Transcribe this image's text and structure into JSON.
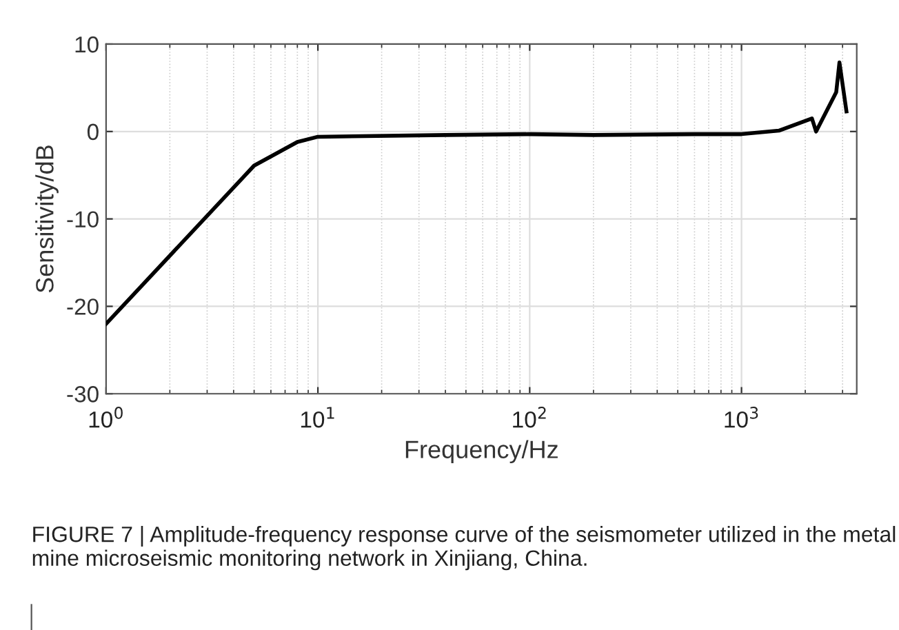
{
  "chart_data": {
    "type": "line",
    "xlabel": "Frequency/Hz",
    "ylabel": "Sensitivity/dB",
    "x": [
      1,
      5,
      8,
      10,
      40,
      100,
      200,
      600,
      1000,
      1500,
      2150,
      2250,
      2800,
      2900,
      3130
    ],
    "series": [
      {
        "color": "#000000",
        "values": [
          -22.0,
          -3.9,
          -1.2,
          -0.6,
          -0.4,
          -0.3,
          -0.4,
          -0.3,
          -0.3,
          0.1,
          1.5,
          0.0,
          4.5,
          7.9,
          2.3
        ]
      }
    ],
    "log": "x",
    "xlim": [
      1,
      3500
    ],
    "xticks": [
      {
        "value": 1,
        "label": "10$^{0}$"
      },
      {
        "value": 10,
        "label": "10$^{1}$"
      },
      {
        "value": 100,
        "label": "10$^{2}$"
      },
      {
        "value": 1000,
        "label": "10$^{3}$"
      }
    ],
    "ylim": [
      -30,
      10
    ],
    "yticks": [
      -30,
      -20,
      -10,
      0,
      10
    ],
    "grid": true,
    "marker": "none",
    "line_style": "solid",
    "annotations": [
      "FIGURE 7 | Amplitude-frequency response curve of the seismometer utilized in the metal mine microseismic monitoring network in Xinjiang, China."
    ]
  }
}
